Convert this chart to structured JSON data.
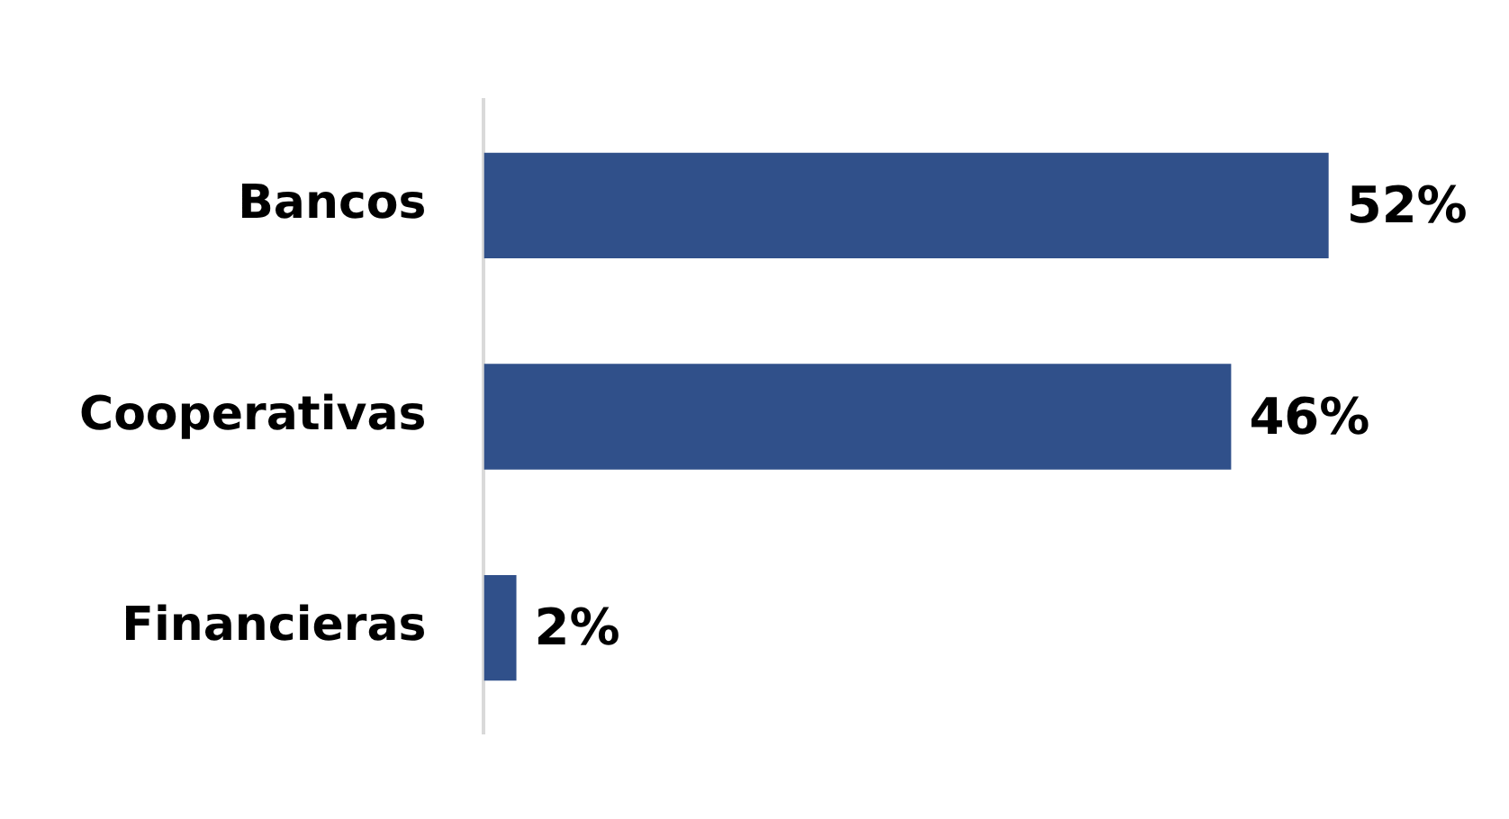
{
  "chart_data": {
    "type": "bar",
    "orientation": "horizontal",
    "categories": [
      "Bancos",
      "Cooperativas",
      "Financieras"
    ],
    "values": [
      52,
      46,
      2
    ],
    "color": "#30508a",
    "value_labels": [
      "52%",
      "46%",
      "2%"
    ],
    "legend": false
  }
}
